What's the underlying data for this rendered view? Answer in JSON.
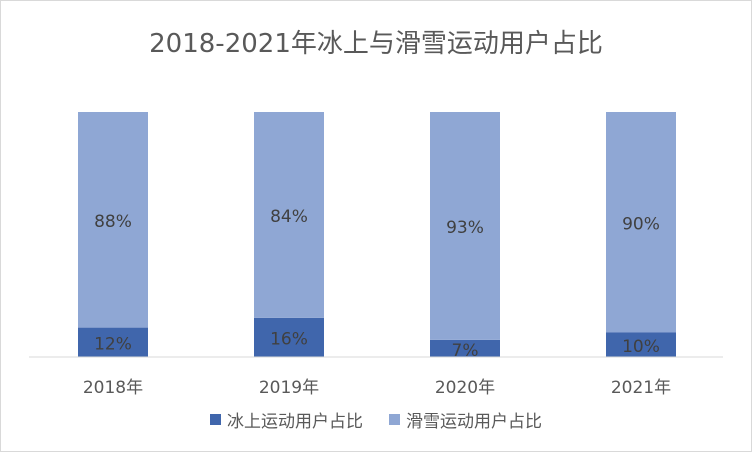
{
  "chart_data": {
    "type": "bar",
    "stacked": true,
    "percent_stacked": true,
    "title": "2018-2021年冰上与滑雪运动用户占比",
    "xlabel": "",
    "ylabel": "",
    "categories": [
      "2018年",
      "2019年",
      "2020年",
      "2021年"
    ],
    "series": [
      {
        "name": "冰上运动用户占比",
        "values": [
          12,
          16,
          7,
          10
        ],
        "labels": [
          "12%",
          "16%",
          "7%",
          "10%"
        ],
        "color": "#4066ac"
      },
      {
        "name": "滑雪运动用户占比",
        "values": [
          88,
          84,
          93,
          90
        ],
        "labels": [
          "88%",
          "84%",
          "93%",
          "90%"
        ],
        "color": "#8fa7d4"
      }
    ],
    "ylim": [
      0,
      100
    ],
    "grid": false,
    "legend_position": "bottom"
  }
}
